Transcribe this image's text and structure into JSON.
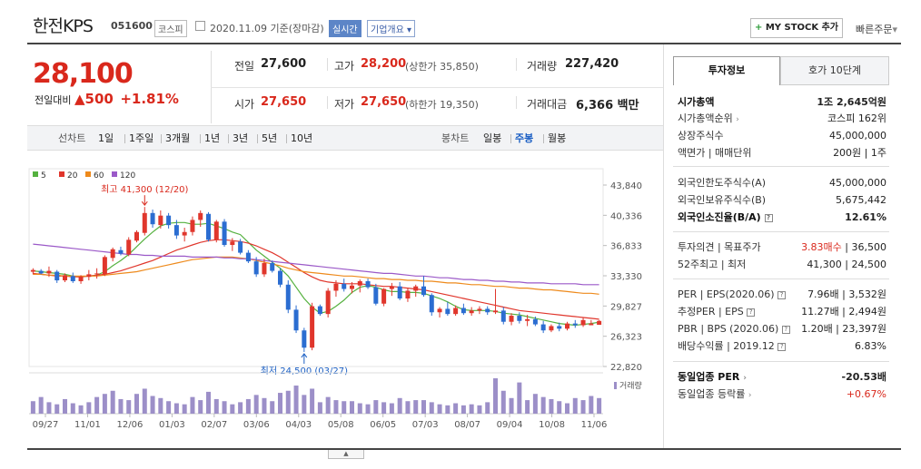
{
  "stock": {
    "name": "한전KPS",
    "code": "051600",
    "market": "코스피",
    "date": "2020.11.09",
    "basis": "기준(장마감)",
    "realtime": "실시간",
    "company": "기업개요"
  },
  "actions": {
    "mystock": "MY STOCK 추가",
    "quick_order": "빠른주문"
  },
  "price": {
    "current": "28,100",
    "change_label": "전일대비",
    "change": "500",
    "rate": "+1.81%"
  },
  "summary": {
    "prev_close_label": "전일",
    "prev_close": "27,600",
    "high_label": "고가",
    "high": "28,200",
    "upper_limit": "(상한가 35,850)",
    "volume_label": "거래량",
    "volume": "227,420",
    "open_label": "시가",
    "open": "27,650",
    "low_label": "저가",
    "low": "27,650",
    "lower_limit": "(하한가 19,350)",
    "amount_label": "거래대금",
    "amount": "6,366",
    "amount_unit": "백만"
  },
  "periods": {
    "label": "선차트",
    "items": [
      "1일",
      "1주일",
      "3개월",
      "1년",
      "3년",
      "5년",
      "10년"
    ],
    "candle_label": "봉차트",
    "candles": [
      "일봉",
      "주봉",
      "월봉"
    ],
    "selected_candle": "주봉"
  },
  "chart_data": {
    "type": "candlestick",
    "legend": [
      "5",
      "20",
      "60",
      "120"
    ],
    "legend_colors": [
      "#55b13f",
      "#e0362c",
      "#ee8a1c",
      "#9b59c8"
    ],
    "y_ticks": [
      "43,840",
      "40,336",
      "36,833",
      "33,330",
      "29,827",
      "26,323",
      "22,820"
    ],
    "ylim": [
      22820,
      43840
    ],
    "x_ticks": [
      "09/27",
      "11/01",
      "12/06",
      "01/03",
      "02/07",
      "03/06",
      "04/03",
      "05/08",
      "06/05",
      "07/03",
      "08/07",
      "09/04",
      "10/08",
      "11/06"
    ],
    "high_annotation": "최고 41,300 (12/20)",
    "low_annotation": "최저 24,500 (03/27)",
    "volume_label": "거래량",
    "candles": [
      [
        33800,
        34200,
        33500,
        34000
      ],
      [
        33900,
        34100,
        33500,
        33600
      ],
      [
        33600,
        34400,
        33200,
        33900
      ],
      [
        33800,
        34000,
        32500,
        32800
      ],
      [
        32800,
        33600,
        32600,
        33400
      ],
      [
        33300,
        33700,
        32500,
        32700
      ],
      [
        32700,
        33400,
        32400,
        33200
      ],
      [
        33200,
        34000,
        32800,
        33500
      ],
      [
        33500,
        34200,
        33000,
        33600
      ],
      [
        33500,
        35700,
        33300,
        35500
      ],
      [
        35400,
        36600,
        35000,
        36400
      ],
      [
        36300,
        36700,
        35700,
        35900
      ],
      [
        35800,
        37800,
        35600,
        37500
      ],
      [
        37400,
        38600,
        37200,
        38400
      ],
      [
        38300,
        41300,
        38000,
        40600
      ],
      [
        40600,
        41000,
        38900,
        39300
      ],
      [
        39200,
        40900,
        38800,
        40300
      ],
      [
        40300,
        40600,
        38800,
        39200
      ],
      [
        39200,
        39800,
        37600,
        38000
      ],
      [
        38000,
        38900,
        37300,
        38400
      ],
      [
        38400,
        40200,
        38000,
        39800
      ],
      [
        39800,
        40900,
        39000,
        40600
      ],
      [
        40500,
        40700,
        37300,
        37500
      ],
      [
        37500,
        39800,
        37200,
        39600
      ],
      [
        39600,
        39900,
        36700,
        36900
      ],
      [
        36900,
        37700,
        36200,
        37300
      ],
      [
        37300,
        37600,
        35800,
        36000
      ],
      [
        36000,
        36300,
        34800,
        35000
      ],
      [
        35000,
        35500,
        33200,
        33500
      ],
      [
        33500,
        35300,
        33200,
        34800
      ],
      [
        34800,
        35100,
        33700,
        33900
      ],
      [
        33900,
        34200,
        32000,
        32300
      ],
      [
        32300,
        32800,
        29000,
        29400
      ],
      [
        29400,
        29900,
        26700,
        27000
      ],
      [
        27000,
        27300,
        24500,
        25000
      ],
      [
        25000,
        30200,
        24700,
        29800
      ],
      [
        29800,
        30000,
        28700,
        28900
      ],
      [
        28900,
        31900,
        28500,
        31600
      ],
      [
        31600,
        32800,
        30900,
        32400
      ],
      [
        32400,
        33000,
        31500,
        31800
      ],
      [
        31800,
        32600,
        31300,
        32200
      ],
      [
        32200,
        32900,
        31400,
        32700
      ],
      [
        32700,
        33000,
        31800,
        32000
      ],
      [
        32000,
        32400,
        29900,
        30100
      ],
      [
        30100,
        31900,
        29800,
        31800
      ],
      [
        31800,
        32500,
        31000,
        32100
      ],
      [
        32100,
        32600,
        30500,
        30700
      ],
      [
        30700,
        31900,
        30300,
        31600
      ],
      [
        31600,
        32300,
        30900,
        32100
      ],
      [
        32100,
        33300,
        30900,
        31100
      ],
      [
        31100,
        31300,
        28700,
        29100
      ],
      [
        29100,
        29700,
        28500,
        29500
      ],
      [
        29500,
        30300,
        28700,
        28900
      ],
      [
        28900,
        29900,
        28700,
        29600
      ],
      [
        29600,
        30100,
        28800,
        29000
      ],
      [
        29000,
        29700,
        28700,
        29300
      ],
      [
        29300,
        29800,
        28900,
        29500
      ],
      [
        29500,
        29800,
        28800,
        29100
      ],
      [
        29100,
        31800,
        28900,
        29300
      ],
      [
        29300,
        29700,
        27700,
        28000
      ],
      [
        28000,
        29000,
        27600,
        28700
      ],
      [
        28700,
        29100,
        27800,
        28100
      ],
      [
        28100,
        28800,
        27500,
        28300
      ],
      [
        28300,
        28600,
        27500,
        27700
      ],
      [
        27700,
        28100,
        26700,
        27000
      ],
      [
        27000,
        27700,
        26800,
        27500
      ],
      [
        27500,
        27900,
        26900,
        27200
      ],
      [
        27200,
        28000,
        27000,
        27800
      ],
      [
        27800,
        28200,
        27300,
        27600
      ],
      [
        27600,
        28500,
        27400,
        28200
      ],
      [
        27600,
        28200,
        27600,
        27800
      ],
      [
        27650,
        28200,
        27650,
        28100
      ]
    ],
    "volumes": [
      12,
      16,
      11,
      9,
      14,
      10,
      8,
      11,
      16,
      19,
      22,
      14,
      13,
      19,
      24,
      17,
      15,
      12,
      10,
      9,
      16,
      13,
      21,
      14,
      12,
      9,
      11,
      14,
      18,
      15,
      12,
      20,
      22,
      27,
      18,
      24,
      11,
      16,
      13,
      12,
      12,
      10,
      9,
      13,
      11,
      10,
      15,
      12,
      13,
      13,
      11,
      9,
      8,
      10,
      8,
      9,
      8,
      11,
      34,
      22,
      15,
      30,
      13,
      19,
      16,
      14,
      12,
      10,
      15,
      13,
      17,
      15
    ],
    "series": [
      {
        "name": "5",
        "values": [
          33900,
          33800,
          33700,
          33600,
          33500,
          33300,
          33200,
          33300,
          33400,
          33800,
          34500,
          35100,
          35800,
          36700,
          37600,
          38400,
          39100,
          39400,
          39500,
          39500,
          39300,
          39300,
          39400,
          39100,
          38800,
          38400,
          38100,
          37200,
          36300,
          35600,
          34900,
          34200,
          33300,
          32000,
          30700,
          29700,
          29000,
          29200,
          29800,
          30500,
          31400,
          32000,
          32200,
          32000,
          31700,
          31500,
          31500,
          31400,
          31400,
          31300,
          31000,
          30700,
          30300,
          29800,
          29400,
          29300,
          29300,
          29300,
          29200,
          29000,
          28900,
          28800,
          28600,
          28400,
          28200,
          28000,
          27800,
          27700,
          27600,
          27700,
          27800,
          27950
        ]
      },
      {
        "name": "20",
        "values": [
          33600,
          33500,
          33400,
          33300,
          33300,
          33200,
          33200,
          33300,
          33400,
          33500,
          33700,
          33900,
          34200,
          34500,
          34800,
          35100,
          35500,
          35900,
          36300,
          36600,
          36900,
          37200,
          37400,
          37500,
          37500,
          37400,
          37300,
          37100,
          36800,
          36400,
          36000,
          35500,
          34900,
          34300,
          33700,
          33200,
          32800,
          32600,
          32500,
          32400,
          32400,
          32400,
          32300,
          32200,
          32100,
          32100,
          32000,
          31900,
          31800,
          31700,
          31500,
          31300,
          31100,
          30900,
          30700,
          30500,
          30300,
          30100,
          29900,
          29700,
          29500,
          29300,
          29200,
          29100,
          29000,
          28900,
          28800,
          28700,
          28600,
          28500,
          28400,
          28300
        ]
      },
      {
        "name": "60",
        "values": [
          33500,
          33500,
          33400,
          33400,
          33300,
          33300,
          33300,
          33300,
          33300,
          33400,
          33500,
          33600,
          33700,
          33800,
          34000,
          34200,
          34400,
          34600,
          34800,
          35000,
          35200,
          35300,
          35400,
          35500,
          35500,
          35500,
          35400,
          35300,
          35100,
          34900,
          34700,
          34500,
          34200,
          34000,
          33800,
          33700,
          33600,
          33500,
          33400,
          33300,
          33300,
          33200,
          33100,
          33000,
          33000,
          32900,
          32900,
          32800,
          32800,
          32700,
          32700,
          32600,
          32500,
          32500,
          32400,
          32300,
          32300,
          32200,
          32100,
          32100,
          32000,
          31900,
          31900,
          31800,
          31700,
          31700,
          31600,
          31500,
          31400,
          31300,
          31300,
          31200
        ]
      },
      {
        "name": "120",
        "values": [
          37000,
          36900,
          36800,
          36700,
          36600,
          36500,
          36400,
          36300,
          36200,
          36100,
          36000,
          35900,
          35800,
          35800,
          35700,
          35700,
          35600,
          35600,
          35600,
          35600,
          35500,
          35500,
          35500,
          35500,
          35400,
          35400,
          35300,
          35300,
          35200,
          35100,
          35000,
          34900,
          34800,
          34700,
          34600,
          34500,
          34400,
          34300,
          34200,
          34100,
          34000,
          33900,
          33800,
          33700,
          33600,
          33600,
          33500,
          33400,
          33300,
          33300,
          33200,
          33100,
          33100,
          33000,
          32900,
          32900,
          32800,
          32800,
          32700,
          32700,
          32600,
          32600,
          32500,
          32500,
          32500,
          32400,
          32400,
          32400,
          32400,
          32300,
          32300,
          32300
        ]
      }
    ]
  },
  "panel": {
    "tab_info": "투자정보",
    "tab_quote": "호가 10단계",
    "market_cap_label": "시가총액",
    "market_cap": "1조 2,645억원",
    "cap_rank_label": "시가총액순위",
    "cap_rank": "코스피 162위",
    "shares_label": "상장주식수",
    "shares": "45,000,000",
    "par_label": "액면가 | 매매단위",
    "par": "200원 | 1주",
    "foreign_limit_label": "외국인한도주식수(A)",
    "foreign_limit": "45,000,000",
    "foreign_hold_label": "외국인보유주식수(B)",
    "foreign_hold": "5,675,442",
    "foreign_ratio_label": "외국인소진율(B/A)",
    "foreign_ratio": "12.61%",
    "opinion_label": "투자의견 | 목표주가",
    "opinion": "3.83매수",
    "target": "36,500",
    "w52_label": "52주최고 | 최저",
    "w52": "41,300 | 24,500",
    "per_label": "PER | EPS(2020.06)",
    "per": "7.96배 | 3,532원",
    "eper_label": "추정PER | EPS",
    "eper": "11.27배 | 2,494원",
    "pbr_label": "PBR | BPS (2020.06)",
    "pbr": "1.20배 | 23,397원",
    "div_label": "배당수익률 | 2019.12",
    "div": "6.83%",
    "sector_per_label": "동일업종 PER",
    "sector_per": "-20.53배",
    "sector_rate_label": "동일업종 등락률",
    "sector_rate": "+0.67%"
  }
}
